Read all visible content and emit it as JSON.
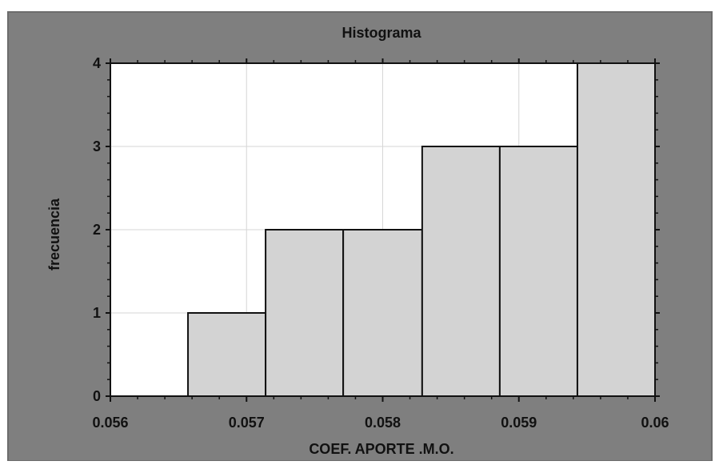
{
  "chart_data": {
    "type": "bar",
    "title": "Histograma",
    "xlabel": "COEF. APORTE .M.O.",
    "ylabel": "frecuencia",
    "bins": [
      {
        "start": 0.056,
        "end": 0.05657,
        "count": 0
      },
      {
        "start": 0.05657,
        "end": 0.05714,
        "count": 1
      },
      {
        "start": 0.05714,
        "end": 0.05771,
        "count": 2
      },
      {
        "start": 0.05771,
        "end": 0.05829,
        "count": 2
      },
      {
        "start": 0.05829,
        "end": 0.05886,
        "count": 3
      },
      {
        "start": 0.05886,
        "end": 0.05943,
        "count": 3
      },
      {
        "start": 0.05943,
        "end": 0.06,
        "count": 4
      }
    ],
    "xlim": [
      0.056,
      0.06
    ],
    "ylim": [
      0,
      4
    ],
    "xticks": [
      "0.056",
      "0.057",
      "0.058",
      "0.059",
      "0.06"
    ],
    "yticks": [
      "0",
      "1",
      "2",
      "3",
      "4"
    ],
    "grid": true,
    "colors": {
      "frame_background": "#7f7f7f",
      "plot_background": "#ffffff",
      "bar_fill": "#d3d3d3",
      "bar_stroke": "#111111",
      "grid": "#d6d6d6"
    }
  }
}
